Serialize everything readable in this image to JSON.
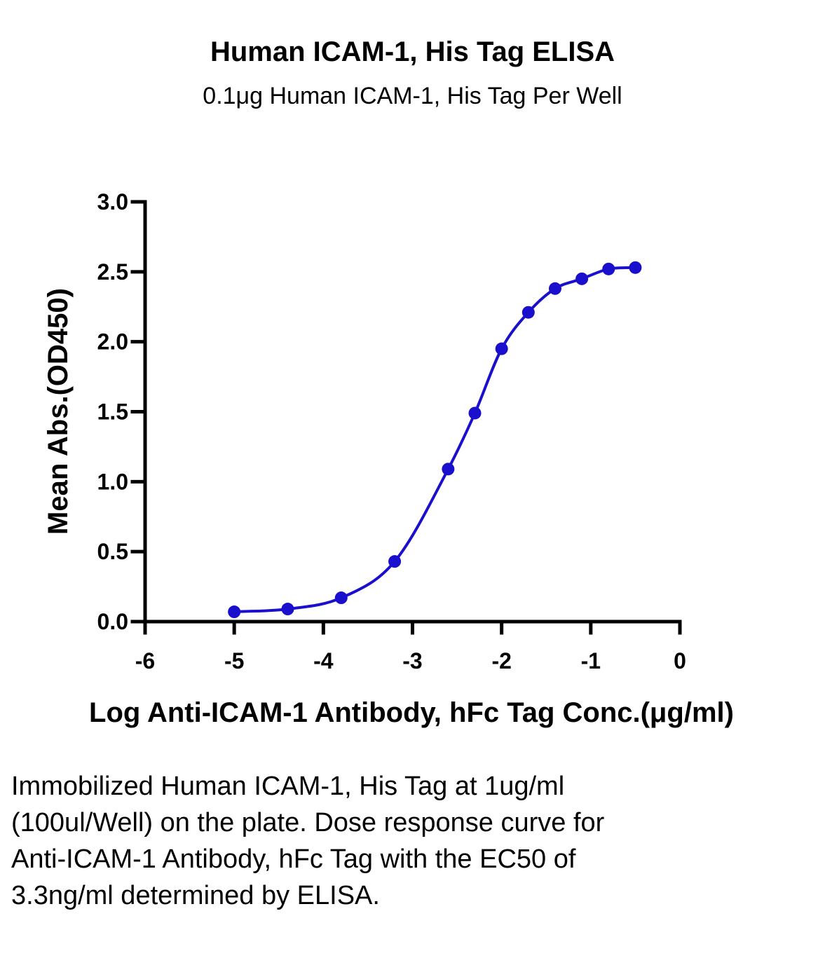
{
  "chart_data": {
    "type": "scatter",
    "title": "Human ICAM-1, His Tag ELISA",
    "subtitle": "0.1μg Human ICAM-1, His Tag Per Well",
    "xlabel": "Log Anti-ICAM-1 Antibody, hFc Tag Conc.(μg/ml)",
    "ylabel": "Mean Abs.(OD450)",
    "xlim": [
      -6,
      0
    ],
    "ylim": [
      0,
      3.0
    ],
    "x_ticks": [
      -6,
      -5,
      -4,
      -3,
      -2,
      -1,
      0
    ],
    "x_tick_labels": [
      "-6",
      "-5",
      "-4",
      "-3",
      "-2",
      "-1",
      "0"
    ],
    "y_ticks": [
      0,
      0.5,
      1.0,
      1.5,
      2.0,
      2.5,
      3.0
    ],
    "y_tick_labels": [
      "0.0",
      "0.5",
      "1.0",
      "1.5",
      "2.0",
      "2.5",
      "3.0"
    ],
    "grid": false,
    "series": [
      {
        "color": "#1a0fcc",
        "fit": "4PL sigmoid",
        "x": [
          -5.0,
          -4.4,
          -3.8,
          -3.2,
          -2.6,
          -2.3,
          -2.0,
          -1.7,
          -1.4,
          -1.1,
          -0.8,
          -0.5
        ],
        "y": [
          0.07,
          0.09,
          0.17,
          0.43,
          1.09,
          1.49,
          1.95,
          2.21,
          2.38,
          2.45,
          2.52,
          2.53
        ]
      }
    ],
    "caption": "Immobilized Human ICAM-1, His Tag at 1ug/ml (100ul/Well) on the plate. Dose response curve for Anti-ICAM-1 Antibody, hFc Tag with the EC50 of 3.3ng/ml determined by ELISA."
  }
}
